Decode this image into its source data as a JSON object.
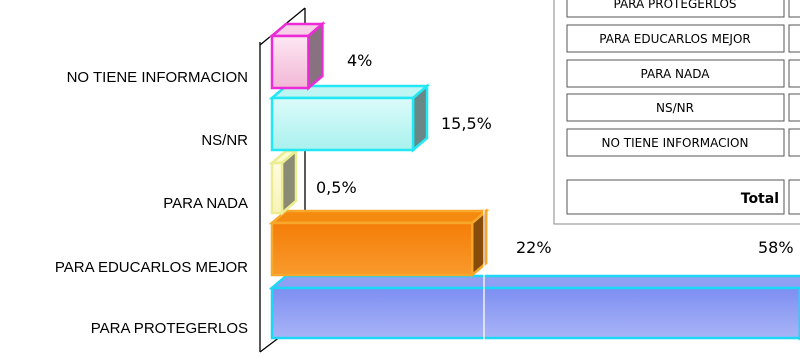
{
  "chart_data": {
    "type": "bar",
    "orientation": "horizontal",
    "categories": [
      "PARA PROTEGERLOS",
      "PARA EDUCARLOS MEJOR",
      "PARA NADA",
      "NS/NR",
      "NO TIENE INFORMACION"
    ],
    "values": [
      58,
      22,
      0.5,
      15.5,
      4
    ],
    "data_labels": [
      "58%",
      "22%",
      "0,5%",
      "15,5%",
      "4%"
    ],
    "colors": [
      "#8fa0f4",
      "#f58a10",
      "#fdfbd0",
      "#bff6f4",
      "#f7cfe6"
    ],
    "border_colors": [
      "#1ed6f6",
      "#f7a72a",
      "#ecec90",
      "#22e8f6",
      "#ec2ad8"
    ],
    "xlim": [
      0,
      60
    ],
    "style": "3d",
    "grid": false,
    "legend": "none"
  },
  "table": {
    "rows": [
      "PARA PROTEGERLOS",
      "PARA EDUCARLOS MEJOR",
      "PARA NADA",
      "NS/NR",
      "NO TIENE INFORMACION"
    ],
    "total_label": "Total"
  }
}
